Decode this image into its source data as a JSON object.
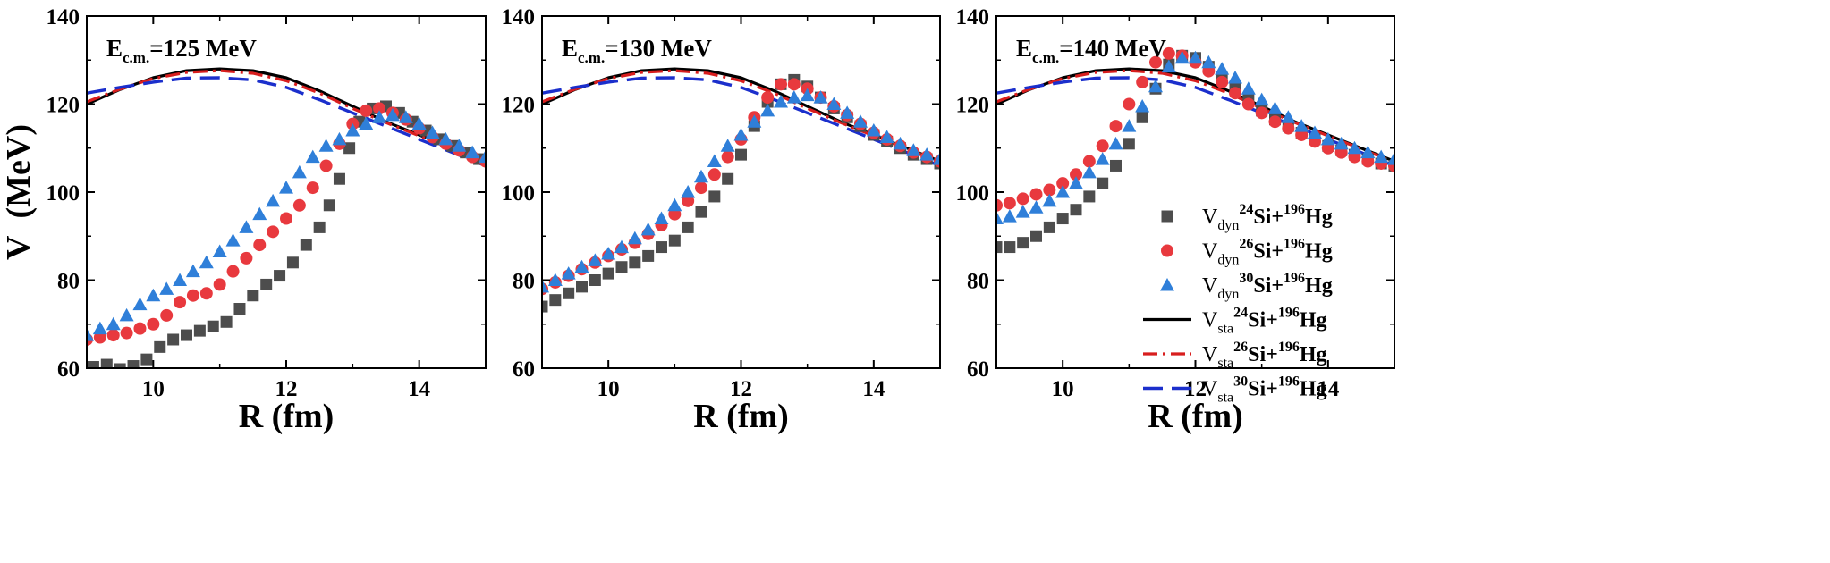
{
  "chart_data": {
    "type": "scatter",
    "ylabel_main": "V",
    "ylabel_unit": "(MeV)",
    "xlabel": "R (fm)",
    "xlim": [
      9,
      15
    ],
    "ylim": [
      60,
      140
    ],
    "xticks": [
      10,
      12,
      14
    ],
    "yticks": [
      60,
      80,
      100,
      120,
      140
    ],
    "colors": {
      "Vdyn_24": "#4d4d4d",
      "Vdyn_26": "#e8393e",
      "Vdyn_30": "#2f7fd9",
      "Vsta_24": "#000000",
      "Vsta_26": "#d81e1e",
      "Vsta_30": "#1b2fcc"
    },
    "legend": {
      "location": "right, panel 3",
      "entries": [
        {
          "symbol": "V",
          "sub": "dyn",
          "a": "24",
          "mid": "Si+",
          "b": "196",
          "tail": "Hg",
          "marker": "square",
          "series": "Vdyn_24"
        },
        {
          "symbol": "V",
          "sub": "dyn",
          "a": "26",
          "mid": "Si+",
          "b": "196",
          "tail": "Hg",
          "marker": "circle",
          "series": "Vdyn_26"
        },
        {
          "symbol": "V",
          "sub": "dyn",
          "a": "30",
          "mid": "Si+",
          "b": "196",
          "tail": "Hg",
          "marker": "triangle",
          "series": "Vdyn_30"
        },
        {
          "symbol": "V",
          "sub": "sta",
          "a": "24",
          "mid": "Si+",
          "b": "196",
          "tail": "Hg",
          "marker": "solid-line",
          "series": "Vsta_24"
        },
        {
          "symbol": "V",
          "sub": "sta",
          "a": "26",
          "mid": "Si+",
          "b": "196",
          "tail": "Hg",
          "marker": "dashdot-line",
          "series": "Vsta_26"
        },
        {
          "symbol": "V",
          "sub": "sta",
          "a": "30",
          "mid": "Si+",
          "b": "196",
          "tail": "Hg",
          "marker": "dash-line",
          "series": "Vsta_30"
        }
      ]
    },
    "static_curves": {
      "Vsta_24": {
        "x": [
          9.0,
          9.5,
          10.0,
          10.5,
          11.0,
          11.5,
          12.0,
          12.5,
          13.0,
          13.5,
          14.0,
          14.5,
          15.0
        ],
        "y": [
          120.0,
          123.3,
          126.0,
          127.6,
          128.0,
          127.6,
          126.0,
          123.0,
          119.5,
          116.0,
          113.0,
          110.0,
          107.0
        ]
      },
      "Vsta_26": {
        "x": [
          9.0,
          9.5,
          10.0,
          10.5,
          11.0,
          11.5,
          12.0,
          12.5,
          13.0,
          13.5,
          14.0,
          14.5,
          15.0
        ],
        "y": [
          120.5,
          123.4,
          125.8,
          127.2,
          127.6,
          127.0,
          125.3,
          122.5,
          119.0,
          115.8,
          112.8,
          109.8,
          106.8
        ]
      },
      "Vsta_30": {
        "x": [
          9.0,
          9.5,
          10.0,
          10.5,
          11.0,
          11.5,
          12.0,
          12.5,
          13.0,
          13.5,
          14.0,
          14.5,
          15.0
        ],
        "y": [
          122.5,
          123.8,
          125.0,
          125.9,
          126.0,
          125.5,
          123.8,
          121.0,
          118.0,
          115.0,
          112.0,
          109.0,
          106.0
        ]
      }
    },
    "panels": [
      {
        "label_main": "E",
        "label_sub": "c.m.",
        "label_value": "=125 MeV",
        "Vdyn_24": {
          "x": [
            9.1,
            9.3,
            9.5,
            9.7,
            9.9,
            10.1,
            10.3,
            10.5,
            10.7,
            10.9,
            11.1,
            11.3,
            11.5,
            11.7,
            11.9,
            12.1,
            12.3,
            12.5,
            12.65,
            12.8,
            12.95,
            13.1,
            13.3,
            13.5,
            13.7,
            13.9,
            14.1,
            14.3,
            14.5,
            14.7,
            14.9
          ],
          "y": [
            60.3,
            60.8,
            59.8,
            60.5,
            62.0,
            64.8,
            66.5,
            67.5,
            68.5,
            69.5,
            70.5,
            73.5,
            76.5,
            79.0,
            81.0,
            84.0,
            88.0,
            92.0,
            97.0,
            103.0,
            110.0,
            116.0,
            119.0,
            119.5,
            118.0,
            116.0,
            114.0,
            112.0,
            110.5,
            109.0,
            107.5
          ]
        },
        "Vdyn_26": {
          "x": [
            9.0,
            9.2,
            9.4,
            9.6,
            9.8,
            10.0,
            10.2,
            10.4,
            10.6,
            10.8,
            11.0,
            11.2,
            11.4,
            11.6,
            11.8,
            12.0,
            12.2,
            12.4,
            12.6,
            12.8,
            13.0,
            13.2,
            13.4,
            13.6,
            13.8,
            14.0,
            14.2,
            14.4,
            14.6,
            14.8,
            15.0
          ],
          "y": [
            66.5,
            67.0,
            67.5,
            68.0,
            69.0,
            70.0,
            72.0,
            75.0,
            76.5,
            77.0,
            79.0,
            82.0,
            85.0,
            88.0,
            91.0,
            94.0,
            97.0,
            101.0,
            106.0,
            111.0,
            115.5,
            118.5,
            119.0,
            118.0,
            116.5,
            114.5,
            112.5,
            111.0,
            109.5,
            108.0,
            107.0
          ]
        },
        "Vdyn_30": {
          "x": [
            9.0,
            9.2,
            9.4,
            9.6,
            9.8,
            10.0,
            10.2,
            10.4,
            10.6,
            10.8,
            11.0,
            11.2,
            11.4,
            11.6,
            11.8,
            12.0,
            12.2,
            12.4,
            12.6,
            12.8,
            13.0,
            13.2,
            13.4,
            13.6,
            13.8,
            14.0,
            14.2,
            14.4,
            14.6,
            14.8,
            15.0
          ],
          "y": [
            67.5,
            69.0,
            70.0,
            72.0,
            74.5,
            76.5,
            78.0,
            80.0,
            82.0,
            84.0,
            86.5,
            89.0,
            92.0,
            95.0,
            98.0,
            101.0,
            104.5,
            108.0,
            110.5,
            112.0,
            114.0,
            115.5,
            117.0,
            117.5,
            117.0,
            115.5,
            113.5,
            112.0,
            110.5,
            109.0,
            108.0
          ]
        }
      },
      {
        "label_main": "E",
        "label_sub": "c.m.",
        "label_value": "=130 MeV",
        "Vdyn_24": {
          "x": [
            9.0,
            9.2,
            9.4,
            9.6,
            9.8,
            10.0,
            10.2,
            10.4,
            10.6,
            10.8,
            11.0,
            11.2,
            11.4,
            11.6,
            11.8,
            12.0,
            12.2,
            12.4,
            12.6,
            12.8,
            13.0,
            13.2,
            13.4,
            13.6,
            13.8,
            14.0,
            14.2,
            14.4,
            14.6,
            14.8,
            15.0
          ],
          "y": [
            74.0,
            75.5,
            77.0,
            78.5,
            80.0,
            81.5,
            83.0,
            84.0,
            85.5,
            87.5,
            89.0,
            92.0,
            95.5,
            99.0,
            103.0,
            108.5,
            115.0,
            120.5,
            124.5,
            125.5,
            124.0,
            121.5,
            119.0,
            117.0,
            115.0,
            113.0,
            111.5,
            110.0,
            108.5,
            107.5,
            106.5
          ]
        },
        "Vdyn_26": {
          "x": [
            9.0,
            9.2,
            9.4,
            9.6,
            9.8,
            10.0,
            10.2,
            10.4,
            10.6,
            10.8,
            11.0,
            11.2,
            11.4,
            11.6,
            11.8,
            12.0,
            12.2,
            12.4,
            12.6,
            12.8,
            13.0,
            13.2,
            13.4,
            13.6,
            13.8,
            14.0,
            14.2,
            14.4,
            14.6,
            14.8,
            15.0
          ],
          "y": [
            78.0,
            79.5,
            81.0,
            82.5,
            84.0,
            85.5,
            87.0,
            88.5,
            90.5,
            92.5,
            95.0,
            98.0,
            101.0,
            104.0,
            108.0,
            112.0,
            117.0,
            121.5,
            124.5,
            124.5,
            123.5,
            121.5,
            119.5,
            117.5,
            115.5,
            113.5,
            112.0,
            110.5,
            109.0,
            108.0,
            107.0
          ]
        },
        "Vdyn_30": {
          "x": [
            9.0,
            9.2,
            9.4,
            9.6,
            9.8,
            10.0,
            10.2,
            10.4,
            10.6,
            10.8,
            11.0,
            11.2,
            11.4,
            11.6,
            11.8,
            12.0,
            12.2,
            12.4,
            12.6,
            12.8,
            13.0,
            13.2,
            13.4,
            13.6,
            13.8,
            14.0,
            14.2,
            14.4,
            14.6,
            14.8,
            15.0
          ],
          "y": [
            78.5,
            80.0,
            81.5,
            83.0,
            84.5,
            86.0,
            87.5,
            89.5,
            91.5,
            94.0,
            97.0,
            100.0,
            103.5,
            107.0,
            110.5,
            113.0,
            116.0,
            118.5,
            120.5,
            121.5,
            122.0,
            121.5,
            120.0,
            118.0,
            116.0,
            114.0,
            112.5,
            111.0,
            109.5,
            108.5,
            107.5
          ]
        }
      },
      {
        "label_main": "E",
        "label_sub": "c.m.",
        "label_value": "=140 MeV",
        "Vdyn_24": {
          "x": [
            9.0,
            9.2,
            9.4,
            9.6,
            9.8,
            10.0,
            10.2,
            10.4,
            10.6,
            10.8,
            11.0,
            11.2,
            11.4,
            11.6,
            11.8,
            12.0,
            12.2,
            12.4,
            12.6,
            12.8,
            13.0,
            13.2,
            13.4,
            13.6,
            13.8,
            14.0,
            14.2,
            14.4,
            14.6,
            14.8,
            15.0
          ],
          "y": [
            87.5,
            87.5,
            88.5,
            90.0,
            92.0,
            94.0,
            96.0,
            99.0,
            102.0,
            106.0,
            111.0,
            117.0,
            123.5,
            129.0,
            131.0,
            130.5,
            128.5,
            126.0,
            123.5,
            121.0,
            118.5,
            116.5,
            115.0,
            113.5,
            112.0,
            110.5,
            109.5,
            108.5,
            107.5,
            106.5,
            106.0
          ]
        },
        "Vdyn_26": {
          "x": [
            9.0,
            9.2,
            9.4,
            9.6,
            9.8,
            10.0,
            10.2,
            10.4,
            10.6,
            10.8,
            11.0,
            11.2,
            11.4,
            11.6,
            11.8,
            12.0,
            12.2,
            12.4,
            12.6,
            12.8,
            13.0,
            13.2,
            13.4,
            13.6,
            13.8,
            14.0,
            14.2,
            14.4,
            14.6,
            14.8,
            15.0
          ],
          "y": [
            97.0,
            97.5,
            98.5,
            99.5,
            100.5,
            102.0,
            104.0,
            107.0,
            110.5,
            115.0,
            120.0,
            125.0,
            129.5,
            131.5,
            131.0,
            129.5,
            127.5,
            125.0,
            122.5,
            120.0,
            118.0,
            116.0,
            114.5,
            113.0,
            111.5,
            110.0,
            109.0,
            108.0,
            107.0,
            106.5,
            106.0
          ]
        },
        "Vdyn_30": {
          "x": [
            9.0,
            9.2,
            9.4,
            9.6,
            9.8,
            10.0,
            10.2,
            10.4,
            10.6,
            10.8,
            11.0,
            11.2,
            11.4,
            11.6,
            11.8,
            12.0,
            12.2,
            12.4,
            12.6,
            12.8,
            13.0,
            13.2,
            13.4,
            13.6,
            13.8,
            14.0,
            14.2,
            14.4,
            14.6,
            14.8,
            15.0
          ],
          "y": [
            94.0,
            94.5,
            95.5,
            96.5,
            98.0,
            100.0,
            102.0,
            104.5,
            107.5,
            111.0,
            115.0,
            119.5,
            124.0,
            128.5,
            130.5,
            130.5,
            129.5,
            128.0,
            126.0,
            123.5,
            121.0,
            119.0,
            117.0,
            115.0,
            113.5,
            112.0,
            111.0,
            110.0,
            109.0,
            108.0,
            107.5
          ]
        }
      }
    ]
  }
}
